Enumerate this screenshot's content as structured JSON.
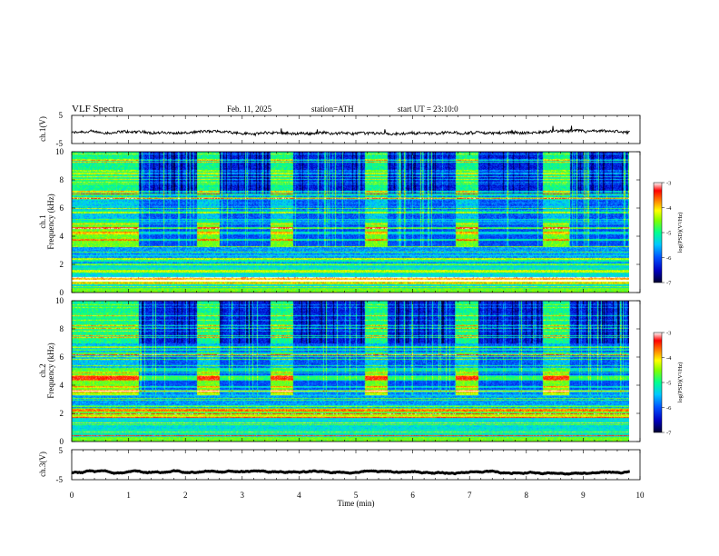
{
  "header": {
    "title": "VLF Spectra",
    "date": "Feb. 11, 2025",
    "station": "station=ATH",
    "start_ut": "start UT =  23:10:0"
  },
  "chart_data": [
    {
      "type": "line",
      "panel": "ch1-voltage",
      "ylabel": "ch.1(V)",
      "yticks": [
        "5",
        "-5"
      ],
      "ylim": [
        -5,
        5
      ],
      "xlim": [
        0,
        10
      ],
      "x_end": 9.82,
      "mean_value": -1.2,
      "line_color": "#000000"
    },
    {
      "type": "heatmap",
      "panel": "ch1-spectrogram",
      "ylabel_channel": "ch.1",
      "ylabel": "Frequency (kHz)",
      "yticks": [
        "0",
        "2",
        "4",
        "6",
        "8",
        "10"
      ],
      "ylim": [
        0,
        10
      ],
      "xlim": [
        0,
        10
      ],
      "x_end": 9.82,
      "colorbar": {
        "label": "log(PSD)(V²/Hz)",
        "ticks": [
          "-3",
          "-4",
          "-5",
          "-6",
          "-7"
        ],
        "range": [
          -7,
          -3
        ]
      }
    },
    {
      "type": "heatmap",
      "panel": "ch2-spectrogram",
      "ylabel_channel": "ch.2",
      "ylabel": "Frequency (kHz)",
      "yticks": [
        "0",
        "2",
        "4",
        "6",
        "8",
        "10"
      ],
      "ylim": [
        0,
        10
      ],
      "xlim": [
        0,
        10
      ],
      "x_end": 9.82,
      "colorbar": {
        "label": "log(PSD)(V²/Hz)",
        "ticks": [
          "-3",
          "-4",
          "-5",
          "-6",
          "-7"
        ],
        "range": [
          -7,
          -3
        ]
      }
    },
    {
      "type": "line",
      "panel": "ch3-voltage",
      "ylabel": "ch.3(V)",
      "yticks": [
        "5",
        "-5"
      ],
      "ylim": [
        -5,
        5
      ],
      "xlim": [
        0,
        10
      ],
      "x_end": 9.82,
      "mean_value": -2.5,
      "line_color": "#000000"
    }
  ],
  "x_axis": {
    "label": "Time (min)",
    "ticks": [
      "0",
      "1",
      "2",
      "3",
      "4",
      "5",
      "6",
      "7",
      "8",
      "9",
      "10"
    ]
  },
  "quiet_intervals_min": [
    [
      0.0,
      1.18
    ],
    [
      2.2,
      2.6
    ],
    [
      3.5,
      3.9
    ],
    [
      5.15,
      5.55
    ],
    [
      6.75,
      7.15
    ],
    [
      8.3,
      8.75
    ]
  ],
  "colors": {
    "colormap": [
      "#000030",
      "#0000c0",
      "#0050ff",
      "#00c8ff",
      "#00ff90",
      "#80ff00",
      "#ffff00",
      "#ff8000",
      "#ff0000",
      "#ffffff"
    ]
  }
}
